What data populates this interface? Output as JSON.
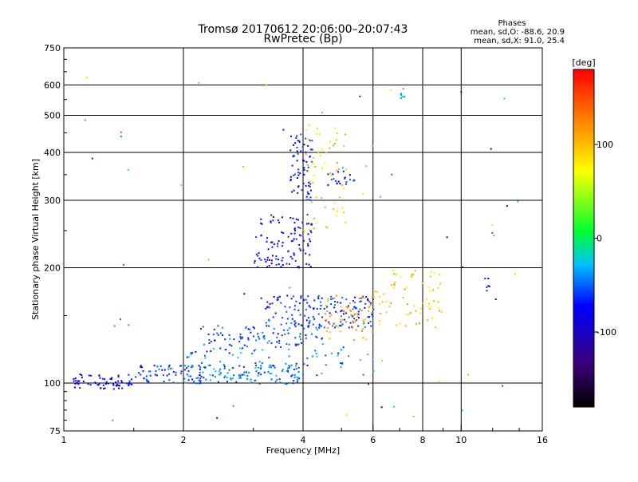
{
  "chart_data": {
    "type": "scatter",
    "title": "Tromsø 20170612 20:06:00–20:07:43",
    "subtitle": "RwPretec (Bp)",
    "xlabel": "Frequency [MHz]",
    "ylabel": "Stationary phase Virtual Height [km]",
    "x_scale": "log",
    "y_scale": "log",
    "xlim": [
      1,
      16
    ],
    "ylim": [
      75,
      750
    ],
    "x_ticks": [
      1,
      2,
      4,
      6,
      8,
      10,
      16
    ],
    "x_tick_labels": [
      "1",
      "2",
      "4",
      "6",
      "8",
      "10",
      "16"
    ],
    "y_ticks": [
      75,
      100,
      200,
      300,
      400,
      500,
      600,
      750
    ],
    "y_tick_labels": [
      "75",
      "100",
      "200",
      "300",
      "400",
      "500",
      "600",
      "750"
    ],
    "grid": true,
    "phases_box": {
      "title": "Phases",
      "line1": "mean, sd,O: -88.6, 20.9",
      "line2": "mean, sd,X:  91.0, 25.4"
    },
    "colorbar": {
      "label": "[deg]",
      "range": [
        -180,
        180
      ],
      "ticks": [
        100,
        0,
        -100
      ],
      "tick_labels": [
        "100",
        "0",
        "-100"
      ]
    },
    "point_clusters": [
      {
        "f": [
          1.05,
          1.5
        ],
        "h": [
          97,
          106
        ],
        "phase": [
          -110,
          -90
        ],
        "n": 70
      },
      {
        "f": [
          1.5,
          2.2
        ],
        "h": [
          100,
          112
        ],
        "phase": [
          -100,
          -60
        ],
        "n": 60
      },
      {
        "f": [
          2.0,
          4.0
        ],
        "h": [
          100,
          112
        ],
        "phase": [
          -100,
          -40
        ],
        "n": 120
      },
      {
        "f": [
          2.2,
          4.5
        ],
        "h": [
          125,
          142
        ],
        "phase": [
          -100,
          -50
        ],
        "n": 90
      },
      {
        "f": [
          3.2,
          6.0
        ],
        "h": [
          140,
          170
        ],
        "phase": [
          -110,
          -60
        ],
        "n": 160
      },
      {
        "f": [
          3.0,
          4.2
        ],
        "h": [
          200,
          280
        ],
        "phase": [
          -120,
          -80
        ],
        "n": 110
      },
      {
        "f": [
          3.7,
          4.2
        ],
        "h": [
          300,
          450
        ],
        "phase": [
          -120,
          -70
        ],
        "n": 70
      },
      {
        "f": [
          4.0,
          5.2
        ],
        "h": [
          250,
          500
        ],
        "phase": [
          60,
          110
        ],
        "n": 60
      },
      {
        "f": [
          4.5,
          6.0
        ],
        "h": [
          130,
          170
        ],
        "phase": [
          80,
          130
        ],
        "n": 60
      },
      {
        "f": [
          6.0,
          9.0
        ],
        "h": [
          140,
          200
        ],
        "phase": [
          60,
          110
        ],
        "n": 70
      },
      {
        "f": [
          2.0,
          6.0
        ],
        "h": [
          105,
          125
        ],
        "phase": [
          -100,
          -20
        ],
        "n": 80
      },
      {
        "f": [
          4.6,
          5.4
        ],
        "h": [
          330,
          360
        ],
        "phase": [
          -110,
          -70
        ],
        "n": 20
      },
      {
        "f": [
          7.0,
          7.2
        ],
        "h": [
          555,
          575
        ],
        "phase": [
          -60,
          -20
        ],
        "n": 8
      },
      {
        "f": [
          11.2,
          11.8
        ],
        "h": [
          175,
          190
        ],
        "phase": [
          -100,
          -70
        ],
        "n": 6
      },
      {
        "f": [
          1.0,
          14.0
        ],
        "h": [
          80,
          650
        ],
        "phase": [
          -150,
          150
        ],
        "n": 60
      }
    ]
  }
}
